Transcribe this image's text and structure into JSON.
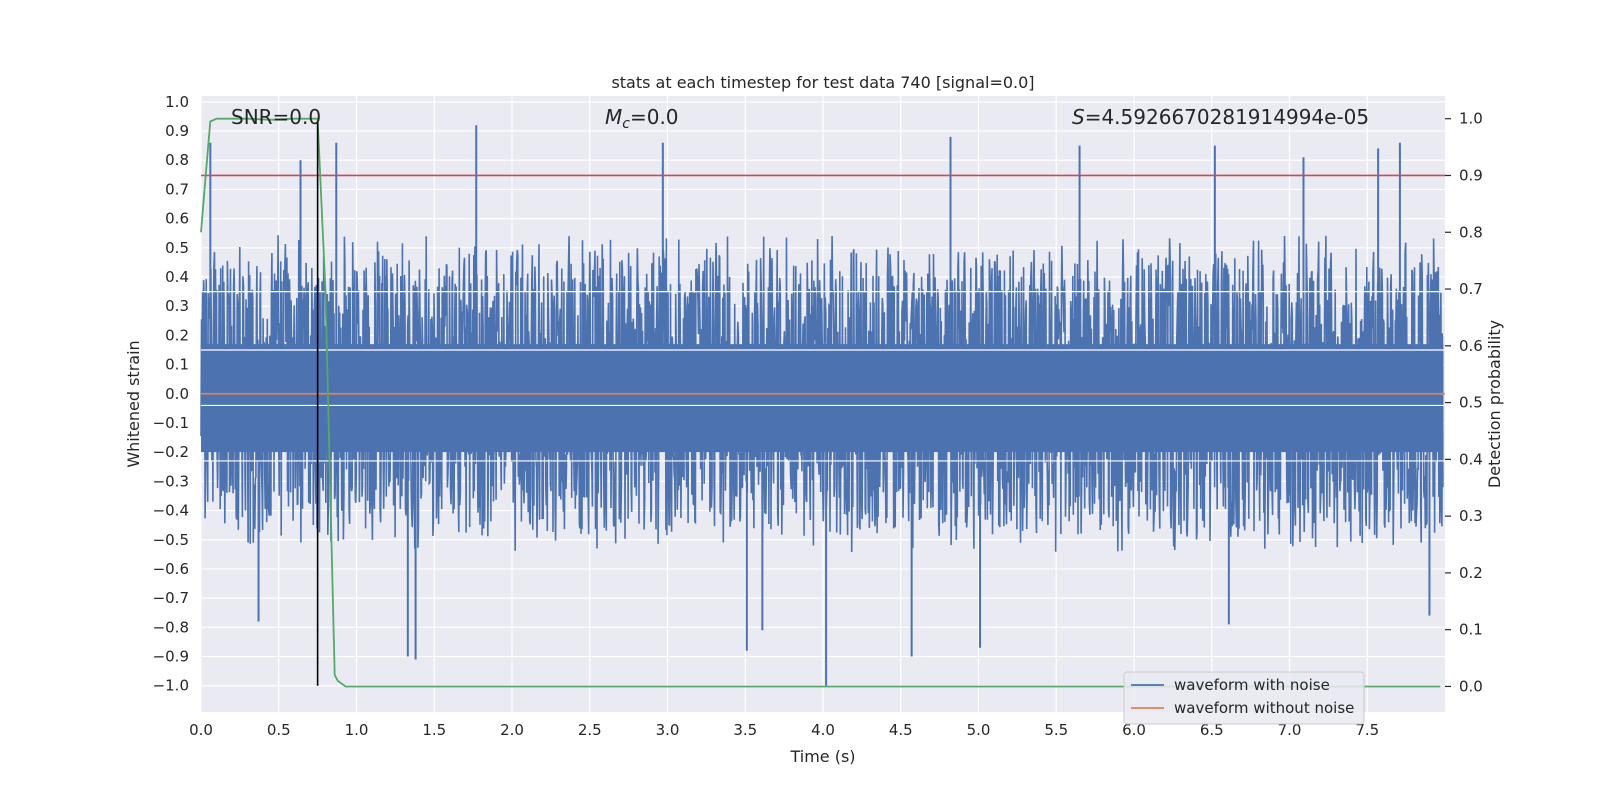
{
  "chart_data": {
    "type": "line",
    "title": "stats at each timestep for test data 740 [signal=0.0]",
    "xlabel": "Time (s)",
    "ylabel_left": "Whitened strain",
    "ylabel_right": "Detection probability",
    "xlim": [
      0.0,
      8.0
    ],
    "ylim_left": [
      -1.09,
      1.02
    ],
    "ylim_right": [
      -0.045,
      1.04
    ],
    "x_ticks": [
      0.0,
      0.5,
      1.0,
      1.5,
      2.0,
      2.5,
      3.0,
      3.5,
      4.0,
      4.5,
      5.0,
      5.5,
      6.0,
      6.5,
      7.0,
      7.5
    ],
    "x_tick_labels": [
      "0.0",
      "0.5",
      "1.0",
      "1.5",
      "2.0",
      "2.5",
      "3.0",
      "3.5",
      "4.0",
      "4.5",
      "5.0",
      "5.5",
      "6.0",
      "6.5",
      "7.0",
      "7.5"
    ],
    "y_left_ticks": [
      1.0,
      0.9,
      0.8,
      0.7,
      0.6,
      0.5,
      0.4,
      0.3,
      0.2,
      0.1,
      0.0,
      -0.1,
      -0.2,
      -0.3,
      -0.4,
      -0.5,
      -0.6,
      -0.7,
      -0.8,
      -0.9,
      -1.0
    ],
    "y_left_tick_labels": [
      "1.0",
      "0.9",
      "0.8",
      "0.7",
      "0.6",
      "0.5",
      "0.4",
      "0.3",
      "0.2",
      "0.1",
      "0.0",
      "−0.1",
      "−0.2",
      "−0.3",
      "−0.4",
      "−0.5",
      "−0.6",
      "−0.7",
      "−0.8",
      "−0.9",
      "−1.0"
    ],
    "y_right_ticks": [
      1.0,
      0.9,
      0.8,
      0.7,
      0.6,
      0.5,
      0.4,
      0.3,
      0.2,
      0.1,
      0.0
    ],
    "y_right_tick_labels": [
      "1.0",
      "0.9",
      "0.8",
      "0.7",
      "0.6",
      "0.5",
      "0.4",
      "0.3",
      "0.2",
      "0.1",
      "0.0"
    ],
    "grid": true,
    "legend_position": "lower-right",
    "annotations": {
      "snr": "SNR=0.0",
      "mc": "=0.0",
      "s": "=4.5926670281914994e-05",
      "mc_symbol": "M",
      "mc_subscript": "c",
      "s_symbol": "S"
    },
    "series": [
      {
        "name": "waveform with noise",
        "axis": "left",
        "color": "#4c72b0",
        "description_values": "dense whitened noise, typical envelope about ±0.45",
        "noise_amplitude": 0.45,
        "peaks": [
          {
            "x": 0.06,
            "y": 0.86
          },
          {
            "x": 0.64,
            "y": 0.8
          },
          {
            "x": 0.87,
            "y": 0.86
          },
          {
            "x": 1.77,
            "y": 0.92
          },
          {
            "x": 2.97,
            "y": 0.86
          },
          {
            "x": 4.82,
            "y": 0.88
          },
          {
            "x": 5.65,
            "y": 0.85
          },
          {
            "x": 6.52,
            "y": 0.85
          },
          {
            "x": 7.09,
            "y": 0.81
          },
          {
            "x": 7.57,
            "y": 0.84
          },
          {
            "x": 7.71,
            "y": 0.86
          },
          {
            "x": 0.37,
            "y": -0.78
          },
          {
            "x": 1.33,
            "y": -0.9
          },
          {
            "x": 1.38,
            "y": -0.91
          },
          {
            "x": 3.51,
            "y": -0.88
          },
          {
            "x": 3.61,
            "y": -0.81
          },
          {
            "x": 4.02,
            "y": -1.0
          },
          {
            "x": 4.57,
            "y": -0.9
          },
          {
            "x": 5.01,
            "y": -0.87
          },
          {
            "x": 6.61,
            "y": -0.79
          },
          {
            "x": 7.9,
            "y": -0.76
          }
        ]
      },
      {
        "name": "waveform without noise",
        "axis": "left",
        "color": "#dd8452",
        "x": [
          0.0,
          8.0
        ],
        "y": [
          0.0,
          0.0
        ]
      },
      {
        "name": "detection probability",
        "axis": "right",
        "color": "#55a868",
        "x": [
          0.0,
          0.03,
          0.06,
          0.1,
          0.15,
          0.3,
          0.45,
          0.6,
          0.75,
          0.8,
          0.86,
          0.88,
          0.93,
          1.0,
          3.0,
          5.0,
          7.0,
          7.97
        ],
        "y": [
          0.8,
          0.9,
          0.995,
          1.0,
          1.0,
          1.0,
          0.998,
          1.0,
          1.0,
          0.7,
          0.02,
          0.01,
          0.0,
          0.0,
          0.0,
          0.0,
          0.0,
          0.0
        ]
      }
    ],
    "threshold_line": {
      "axis": "right",
      "y": 0.9,
      "color": "#c44e52"
    },
    "marker_line": {
      "x": 0.75,
      "y_from": -1.0,
      "y_to": 0.93,
      "color": "#000000"
    }
  }
}
